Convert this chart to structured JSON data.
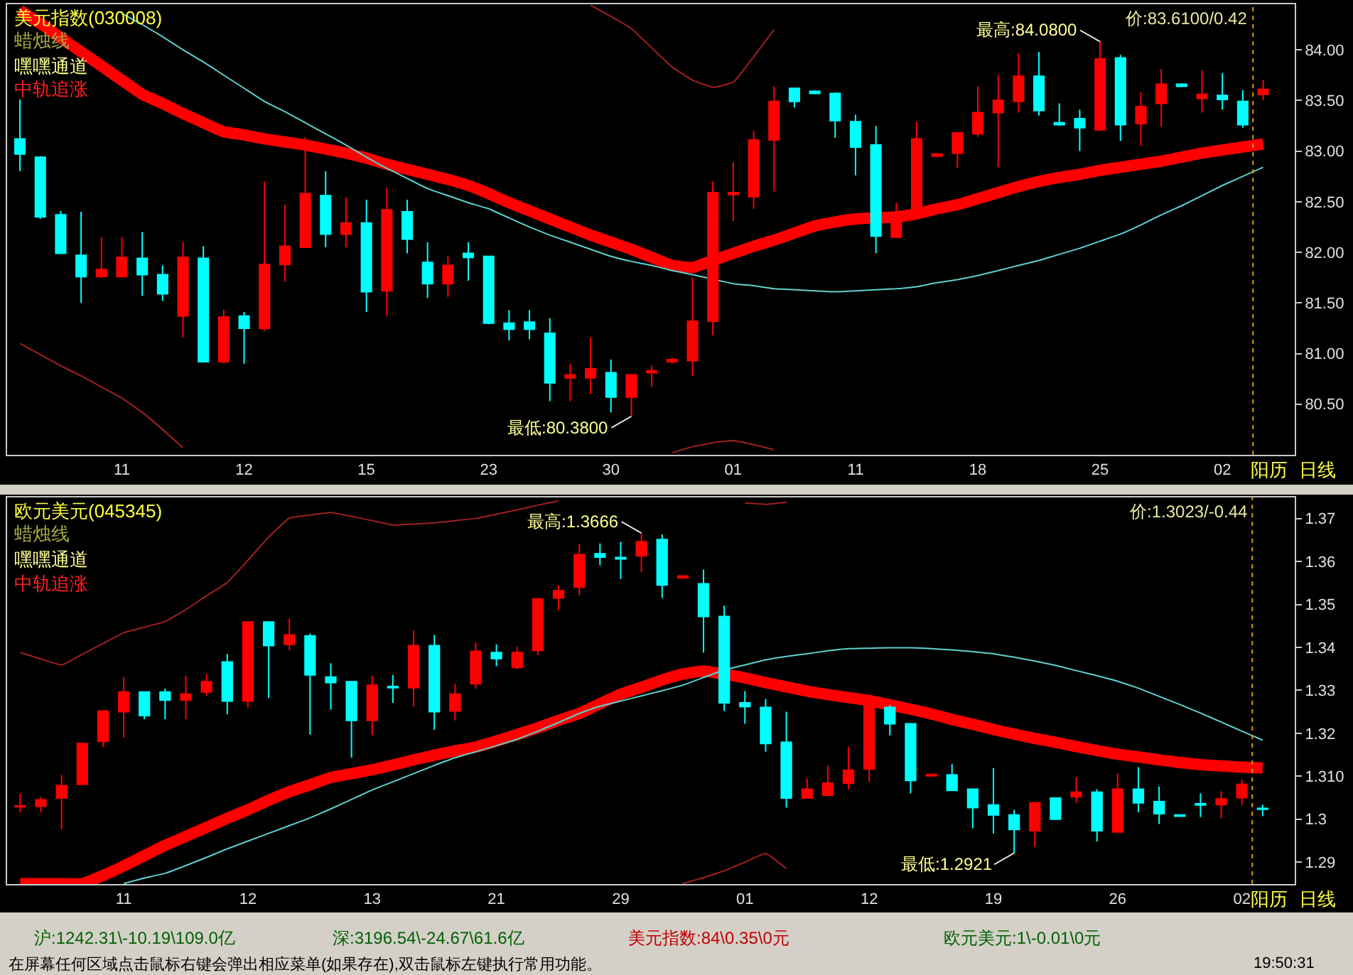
{
  "chart_data": [
    {
      "type": "candlestick",
      "title": "美元指数(030008)",
      "categories": [
        null,
        null,
        null,
        null,
        null,
        "11",
        null,
        null,
        null,
        null,
        null,
        "12",
        null,
        null,
        null,
        null,
        null,
        "15",
        null,
        null,
        null,
        null,
        null,
        "23",
        null,
        null,
        null,
        null,
        null,
        "30",
        null,
        null,
        null,
        null,
        null,
        "01",
        null,
        null,
        null,
        null,
        null,
        "11",
        null,
        null,
        null,
        null,
        null,
        "18",
        null,
        null,
        null,
        null,
        null,
        "25",
        null,
        null,
        null,
        null,
        null,
        "02",
        null,
        null
      ],
      "ohlc": [
        [
          83.12,
          83.51,
          82.8,
          82.97
        ],
        [
          82.94,
          82.95,
          82.33,
          82.35
        ],
        [
          82.37,
          82.41,
          81.99,
          81.99
        ],
        [
          81.97,
          82.4,
          81.5,
          81.76
        ],
        [
          81.76,
          82.15,
          81.75,
          81.83
        ],
        [
          81.76,
          82.15,
          81.75,
          81.95
        ],
        [
          81.94,
          82.2,
          81.57,
          81.78
        ],
        [
          81.78,
          81.87,
          81.52,
          81.59
        ],
        [
          81.37,
          82.1,
          81.16,
          81.95
        ],
        [
          81.94,
          82.06,
          80.91,
          80.92
        ],
        [
          80.92,
          81.43,
          80.9,
          81.36
        ],
        [
          81.37,
          81.41,
          80.9,
          81.25
        ],
        [
          81.25,
          82.7,
          81.22,
          81.88
        ],
        [
          81.88,
          82.47,
          81.71,
          82.06
        ],
        [
          82.05,
          83.14,
          82.05,
          82.58
        ],
        [
          82.56,
          82.8,
          82.05,
          82.18
        ],
        [
          82.18,
          82.54,
          82.05,
          82.29
        ],
        [
          82.29,
          82.52,
          81.41,
          81.61
        ],
        [
          81.62,
          82.64,
          81.37,
          82.42
        ],
        [
          82.4,
          82.52,
          81.99,
          82.13
        ],
        [
          81.9,
          82.1,
          81.55,
          81.69
        ],
        [
          81.69,
          81.96,
          81.56,
          81.87
        ],
        [
          81.99,
          82.1,
          81.72,
          81.95
        ],
        [
          81.96,
          81.96,
          81.29,
          81.3
        ],
        [
          81.3,
          81.43,
          81.13,
          81.24
        ],
        [
          81.31,
          81.43,
          81.14,
          81.24
        ],
        [
          81.2,
          81.35,
          80.53,
          80.71
        ],
        [
          80.76,
          80.9,
          80.53,
          80.79
        ],
        [
          80.76,
          81.16,
          80.6,
          80.85
        ],
        [
          80.81,
          80.94,
          80.42,
          80.57
        ],
        [
          80.57,
          80.79,
          80.38,
          80.79
        ],
        [
          80.81,
          80.88,
          80.67,
          80.83
        ],
        [
          80.92,
          80.96,
          80.9,
          80.94
        ],
        [
          80.93,
          81.75,
          80.78,
          81.32
        ],
        [
          81.32,
          82.7,
          81.18,
          82.59
        ],
        [
          82.57,
          82.89,
          82.31,
          82.59
        ],
        [
          82.55,
          83.2,
          82.43,
          83.11
        ],
        [
          83.11,
          83.64,
          82.6,
          83.49
        ],
        [
          83.62,
          83.62,
          83.43,
          83.49
        ],
        [
          83.59,
          83.6,
          83.56,
          83.57
        ],
        [
          83.57,
          83.58,
          83.13,
          83.3
        ],
        [
          83.29,
          83.36,
          82.76,
          83.04
        ],
        [
          83.06,
          83.25,
          81.99,
          82.16
        ],
        [
          82.15,
          82.49,
          82.15,
          82.33
        ],
        [
          82.38,
          83.29,
          82.38,
          83.12
        ],
        [
          82.95,
          82.98,
          82.94,
          82.97
        ],
        [
          82.98,
          83.18,
          82.83,
          83.18
        ],
        [
          83.17,
          83.64,
          83.14,
          83.38
        ],
        [
          83.38,
          83.75,
          82.84,
          83.5
        ],
        [
          83.49,
          83.97,
          83.38,
          83.74
        ],
        [
          83.74,
          83.98,
          83.35,
          83.4
        ],
        [
          83.28,
          83.47,
          83.25,
          83.26
        ],
        [
          83.32,
          83.41,
          83.0,
          83.23
        ],
        [
          83.21,
          84.08,
          83.21,
          83.91
        ],
        [
          83.92,
          83.95,
          83.1,
          83.26
        ],
        [
          83.27,
          83.58,
          83.05,
          83.44
        ],
        [
          83.47,
          83.81,
          83.24,
          83.66
        ],
        [
          83.66,
          83.67,
          83.63,
          83.64
        ],
        [
          83.52,
          83.8,
          83.38,
          83.56
        ],
        [
          83.55,
          83.77,
          83.41,
          83.51
        ],
        [
          83.49,
          83.6,
          83.23,
          83.26
        ],
        [
          83.56,
          83.7,
          83.5,
          83.61
        ]
      ],
      "colors": [
        "#00ffff",
        "#00ffff",
        "#00ffff",
        "#00ffff",
        "#ff0000",
        "#ff0000",
        "#00ffff",
        "#00ffff",
        "#ff0000",
        "#00ffff",
        "#ff0000",
        "#00ffff",
        "#ff0000",
        "#ff0000",
        "#ff0000",
        "#00ffff",
        "#ff0000",
        "#00ffff",
        "#ff0000",
        "#00ffff",
        "#00ffff",
        "#ff0000",
        "#00ffff",
        "#00ffff",
        "#00ffff",
        "#00ffff",
        "#00ffff",
        "#ff0000",
        "#ff0000",
        "#00ffff",
        "#ff0000",
        "#ff0000",
        "#ff0000",
        "#ff0000",
        "#ff0000",
        "#ff0000",
        "#ff0000",
        "#ff0000",
        "#00ffff",
        "#00ffff",
        "#00ffff",
        "#00ffff",
        "#00ffff",
        "#ff0000",
        "#ff0000",
        "#ff0000",
        "#ff0000",
        "#ff0000",
        "#ff0000",
        "#ff0000",
        "#00ffff",
        "#00ffff",
        "#00ffff",
        "#ff0000",
        "#00ffff",
        "#ff0000",
        "#ff0000",
        "#00ffff",
        "#ff0000",
        "#00ffff",
        "#00ffff",
        "#ff0000"
      ],
      "series": [
        {
          "type": "line",
          "color": "#ff0000",
          "values": [
            84.39,
            84.26,
            84.12,
            83.98,
            83.84,
            83.7,
            83.56,
            83.47,
            83.37,
            83.28,
            83.19,
            83.16,
            83.12,
            83.09,
            83.06,
            83.02,
            82.98,
            82.93,
            82.87,
            82.82,
            82.77,
            82.72,
            82.66,
            82.58,
            82.49,
            82.41,
            82.33,
            82.25,
            82.17,
            82.1,
            82.03,
            81.95,
            81.87,
            81.85,
            81.92,
            81.99,
            82.06,
            82.12,
            82.19,
            82.26,
            82.3,
            82.33,
            null,
            82.35,
            82.38,
            82.43,
            82.47,
            82.53,
            82.59,
            82.65,
            82.7,
            82.74,
            82.77,
            82.81,
            82.84,
            82.87,
            82.9,
            82.94,
            82.98,
            83.01,
            83.04,
            83.07
          ]
        },
        {
          "type": "line",
          "color": "#5fcfcf",
          "values": [
            null,
            null,
            null,
            null,
            null,
            84.36,
            84.25,
            84.13,
            84.0,
            83.88,
            83.75,
            83.62,
            83.49,
            83.39,
            83.28,
            83.17,
            83.06,
            82.94,
            82.83,
            82.73,
            82.63,
            82.56,
            82.49,
            82.43,
            82.34,
            82.25,
            82.17,
            82.1,
            82.03,
            81.96,
            81.91,
            81.87,
            81.82,
            81.78,
            null,
            81.69,
            81.67,
            81.64,
            81.63,
            81.62,
            81.61,
            81.62,
            81.63,
            81.64,
            81.66,
            81.7,
            81.73,
            81.77,
            81.82,
            81.87,
            81.92,
            81.98,
            82.04,
            82.11,
            82.18,
            82.27,
            82.37,
            82.46,
            82.56,
            82.66,
            82.75,
            82.84
          ]
        },
        {
          "type": "line",
          "color": "#a02020",
          "values": [
            null,
            null,
            null,
            null,
            null,
            null,
            null,
            null,
            null,
            null,
            null,
            null,
            null,
            null,
            null,
            null,
            null,
            null,
            null,
            null,
            null,
            null,
            null,
            null,
            null,
            null,
            null,
            null,
            84.44,
            84.33,
            84.21,
            84.02,
            83.83,
            83.7,
            83.63,
            83.68,
            83.93,
            84.2,
            null,
            null,
            null,
            null,
            null,
            null,
            null,
            null,
            null,
            null,
            null,
            null,
            null,
            null,
            null,
            null,
            null,
            null,
            null,
            null,
            null,
            null,
            null,
            null
          ]
        },
        {
          "type": "line",
          "color": "#a02020",
          "values": [
            81.1,
            80.99,
            80.88,
            80.78,
            80.67,
            80.56,
            80.42,
            80.25,
            80.07,
            null,
            null,
            null,
            null,
            null,
            null,
            null,
            null,
            null,
            null,
            null,
            null,
            null,
            null,
            null,
            null,
            null,
            null,
            null,
            null,
            null,
            null,
            null,
            80.02,
            80.08,
            80.12,
            80.14,
            80.1,
            80.05,
            null,
            null,
            null,
            null,
            null,
            null,
            null,
            null,
            null,
            null,
            null,
            null,
            null,
            null,
            null,
            null,
            null,
            null,
            null,
            null,
            null,
            null,
            null,
            null
          ]
        }
      ],
      "ylim": [
        80.0,
        84.45
      ],
      "yticks": [
        {
          "value": 80.5,
          "label": "80.50"
        },
        {
          "value": 81.0,
          "label": "81.00"
        },
        {
          "value": 81.5,
          "label": "81.50"
        },
        {
          "value": 82.0,
          "label": "82.00"
        },
        {
          "value": 82.5,
          "label": "82.50"
        },
        {
          "value": 83.0,
          "label": "83.00"
        },
        {
          "value": 83.5,
          "label": "83.50"
        },
        {
          "value": 84.0,
          "label": "84.00"
        }
      ],
      "annotations": [
        "蜡烛线",
        "嘿嘿通道",
        "中轨追涨",
        "价:83.6100/0.42",
        "阳历",
        "日线",
        "最高:84.0800",
        "最低:80.3800"
      ],
      "grid": false
    },
    {
      "type": "candlestick",
      "title": "欧元美元(045345)",
      "categories": [
        null,
        null,
        null,
        null,
        null,
        "11",
        null,
        null,
        null,
        null,
        null,
        "12",
        null,
        null,
        null,
        null,
        null,
        "13",
        null,
        null,
        null,
        null,
        null,
        "21",
        null,
        null,
        null,
        null,
        null,
        "29",
        null,
        null,
        null,
        null,
        null,
        "01",
        null,
        null,
        null,
        null,
        null,
        "12",
        null,
        null,
        null,
        null,
        null,
        "19",
        null,
        null,
        null,
        null,
        null,
        "26",
        null,
        null,
        null,
        null,
        null,
        "02",
        null
      ],
      "ohlc": [
        [
          1.3029,
          1.3059,
          1.3016,
          1.3031
        ],
        [
          1.303,
          1.3052,
          1.3016,
          1.3045
        ],
        [
          1.3049,
          1.3103,
          1.2976,
          1.3078
        ],
        [
          1.3081,
          1.3176,
          1.3081,
          1.3176
        ],
        [
          1.3181,
          1.3252,
          1.3168,
          1.3252
        ],
        [
          1.325,
          1.3331,
          1.319,
          1.3296
        ],
        [
          1.3296,
          1.3296,
          1.3233,
          1.3241
        ],
        [
          1.3296,
          1.3304,
          1.3233,
          1.3277
        ],
        [
          1.3277,
          1.3334,
          1.3233,
          1.3291
        ],
        [
          1.3296,
          1.3338,
          1.3287,
          1.332
        ],
        [
          1.3366,
          1.3385,
          1.3244,
          1.3275
        ],
        [
          1.3275,
          1.3459,
          1.326,
          1.3459
        ],
        [
          1.3459,
          1.3459,
          1.3282,
          1.3404
        ],
        [
          1.3407,
          1.3467,
          1.3393,
          1.3429
        ],
        [
          1.3427,
          1.3432,
          1.3197,
          1.3336
        ],
        [
          1.3331,
          1.3363,
          1.3255,
          1.3318
        ],
        [
          1.332,
          1.332,
          1.3143,
          1.323
        ],
        [
          1.323,
          1.3334,
          1.3195,
          1.3312
        ],
        [
          1.3309,
          1.3336,
          1.3271,
          1.3306
        ],
        [
          1.3306,
          1.3439,
          1.3263,
          1.3404
        ],
        [
          1.3404,
          1.3429,
          1.3208,
          1.325
        ],
        [
          1.3252,
          1.3315,
          1.323,
          1.3291
        ],
        [
          1.3315,
          1.3412,
          1.3304,
          1.3391
        ],
        [
          1.3388,
          1.3407,
          1.3356,
          1.3374
        ],
        [
          1.3353,
          1.3401,
          1.3349,
          1.3388
        ],
        [
          1.3393,
          1.3513,
          1.3382,
          1.3513
        ],
        [
          1.3515,
          1.3545,
          1.3486,
          1.3532
        ],
        [
          1.354,
          1.364,
          1.3521,
          1.3616
        ],
        [
          1.3618,
          1.3642,
          1.3591,
          1.361
        ],
        [
          1.3609,
          1.3646,
          1.3559,
          1.3606
        ],
        [
          1.3613,
          1.3666,
          1.3575,
          1.3646
        ],
        [
          1.3651,
          1.3663,
          1.3515,
          1.3545
        ],
        [
          1.3562,
          1.3568,
          1.356,
          1.3566
        ],
        [
          1.3548,
          1.3581,
          1.3388,
          1.3472
        ],
        [
          1.3472,
          1.3497,
          1.3252,
          1.3271
        ],
        [
          1.3271,
          1.3298,
          1.3222,
          1.3262
        ],
        [
          1.326,
          1.328,
          1.3157,
          1.3176
        ],
        [
          1.3179,
          1.325,
          1.3027,
          1.3049
        ],
        [
          1.3049,
          1.3095,
          1.3049,
          1.307
        ],
        [
          1.3056,
          1.3125,
          1.3056,
          1.3084
        ],
        [
          1.3084,
          1.3168,
          1.307,
          1.3114
        ],
        [
          1.3117,
          1.3288,
          1.3087,
          1.328
        ],
        [
          1.326,
          1.3266,
          1.3195,
          1.3222
        ],
        [
          1.3222,
          1.3222,
          1.306,
          1.309
        ],
        [
          1.3101,
          1.3105,
          1.31,
          1.3104
        ],
        [
          1.3103,
          1.3128,
          1.3067,
          1.3067
        ],
        [
          1.307,
          1.307,
          1.2979,
          1.3027
        ],
        [
          1.3033,
          1.3119,
          1.2967,
          1.301
        ],
        [
          1.301,
          1.3022,
          1.2921,
          1.2976
        ],
        [
          1.2973,
          1.3038,
          1.2935,
          1.3038
        ],
        [
          1.3049,
          1.3049,
          1.3,
          1.3
        ],
        [
          1.3052,
          1.3098,
          1.3038,
          1.3063
        ],
        [
          1.3063,
          1.307,
          1.2948,
          1.2973
        ],
        [
          1.297,
          1.3106,
          1.297,
          1.307
        ],
        [
          1.307,
          1.3121,
          1.3016,
          1.3038
        ],
        [
          1.3041,
          1.3076,
          1.2989,
          1.3013
        ],
        [
          1.301,
          1.3011,
          1.3006,
          1.3007
        ],
        [
          1.3036,
          1.306,
          1.3005,
          1.3033
        ],
        [
          1.3034,
          1.3065,
          1.3002,
          1.3047
        ],
        [
          1.305,
          1.3092,
          1.3033,
          1.3081
        ],
        [
          1.3025,
          1.3034,
          1.3007,
          1.3023
        ]
      ],
      "colors": [
        "#ff0000",
        "#ff0000",
        "#ff0000",
        "#ff0000",
        "#ff0000",
        "#ff0000",
        "#00ffff",
        "#00ffff",
        "#ff0000",
        "#ff0000",
        "#00ffff",
        "#ff0000",
        "#00ffff",
        "#ff0000",
        "#00ffff",
        "#00ffff",
        "#00ffff",
        "#ff0000",
        "#00ffff",
        "#ff0000",
        "#00ffff",
        "#ff0000",
        "#ff0000",
        "#00ffff",
        "#ff0000",
        "#ff0000",
        "#ff0000",
        "#ff0000",
        "#00ffff",
        "#00ffff",
        "#ff0000",
        "#00ffff",
        "#ff0000",
        "#00ffff",
        "#00ffff",
        "#00ffff",
        "#00ffff",
        "#00ffff",
        "#ff0000",
        "#ff0000",
        "#ff0000",
        "#ff0000",
        "#00ffff",
        "#00ffff",
        "#ff0000",
        "#00ffff",
        "#00ffff",
        "#00ffff",
        "#00ffff",
        "#ff0000",
        "#00ffff",
        "#ff0000",
        "#00ffff",
        "#ff0000",
        "#00ffff",
        "#00ffff",
        "#00ffff",
        "#00ffff",
        "#ff0000",
        "#ff0000",
        "#00ffff"
      ],
      "series": [
        {
          "type": "line",
          "color": "#ff0000",
          "values": [
            1.285,
            1.285,
            1.285,
            1.285,
            1.2869,
            1.2891,
            1.2915,
            1.2939,
            1.296,
            1.2981,
            1.3002,
            1.3022,
            1.3044,
            1.3064,
            1.308,
            1.3097,
            1.3106,
            1.3115,
            1.3126,
            1.3138,
            1.3149,
            1.3159,
            1.3168,
            1.3182,
            1.3197,
            1.3213,
            1.323,
            1.3246,
            1.3269,
            1.3291,
            1.3307,
            1.3324,
            1.3338,
            1.3345,
            null,
            1.3329,
            1.3318,
            1.3308,
            1.3298,
            1.329,
            1.3283,
            1.3276,
            1.3266,
            1.3256,
            1.3245,
            1.3232,
            1.3221,
            1.3209,
            1.3198,
            1.3188,
            1.3179,
            1.3169,
            1.316,
            1.3151,
            1.3145,
            1.3138,
            1.3132,
            1.3127,
            1.3124,
            1.3121,
            1.3119
          ]
        },
        {
          "type": "line",
          "color": "#5fcfcf",
          "values": [
            null,
            null,
            null,
            null,
            null,
            1.285,
            1.2863,
            1.2874,
            1.2892,
            1.2911,
            1.2931,
            1.2949,
            1.2967,
            1.2985,
            1.3003,
            1.3024,
            1.3046,
            1.3068,
            1.3087,
            1.3106,
            1.3125,
            1.3143,
            1.3157,
            1.3171,
            1.3186,
            1.3205,
            1.3225,
            1.3246,
            1.3263,
            1.3275,
            1.3287,
            1.3299,
            1.3312,
            1.333,
            1.3347,
            1.3359,
            1.3371,
            1.3379,
            1.3385,
            1.3392,
            1.3397,
            1.3398,
            1.3399,
            1.3399,
            1.3397,
            1.3394,
            1.339,
            1.3385,
            1.3377,
            1.3368,
            1.3358,
            1.3346,
            1.3334,
            1.3321,
            1.3305,
            1.3286,
            1.3267,
            1.3247,
            1.3226,
            1.3205,
            1.3184
          ]
        },
        {
          "type": "line",
          "color": "#a02020",
          "values": [
            1.3388,
            1.3373,
            1.3359,
            1.3384,
            1.3409,
            1.3434,
            1.3447,
            1.346,
            1.3488,
            1.352,
            1.3551,
            1.3603,
            1.3657,
            1.3701,
            1.3708,
            1.3714,
            1.3705,
            1.3695,
            1.3685,
            1.3687,
            1.369,
            1.3695,
            1.37,
            1.371,
            1.372,
            1.3731,
            1.3741,
            null,
            null,
            null,
            null,
            null,
            null,
            null,
            null,
            1.3736,
            1.3733,
            1.3738,
            null,
            null,
            null,
            null,
            null,
            null,
            null,
            null,
            null,
            null,
            null,
            null,
            null,
            null,
            null,
            null,
            null,
            null,
            null,
            null,
            null,
            null,
            null
          ]
        },
        {
          "type": "line",
          "color": "#a02020",
          "values": [
            null,
            null,
            null,
            null,
            null,
            null,
            null,
            null,
            null,
            null,
            null,
            null,
            null,
            null,
            null,
            null,
            null,
            null,
            null,
            null,
            null,
            null,
            null,
            null,
            null,
            null,
            null,
            null,
            null,
            null,
            null,
            null,
            1.285,
            1.2864,
            1.288,
            1.29,
            1.292,
            1.2885,
            null,
            null,
            null,
            null,
            null,
            null,
            null,
            null,
            null,
            null,
            null,
            null,
            null,
            null,
            null,
            null,
            null,
            null,
            null,
            null,
            null,
            null,
            null
          ]
        }
      ],
      "ylim": [
        1.2849,
        1.3749
      ],
      "yticks": [
        1.29,
        1.3,
        {
          "value": 1.31,
          "label": "1.310"
        },
        1.32,
        1.33,
        1.34,
        1.35,
        1.36,
        1.37
      ],
      "annotations": [
        "蜡烛线",
        "嘿嘿通道",
        "中轨追涨",
        "价:1.3023/-0.44",
        "阳历",
        "日线",
        "最高:1.3666",
        "最低:1.2921",
        "沪:1242.31\\-10.19\\109.0亿",
        "深:3196.54\\-24.67\\61.6亿",
        "美元指数:84\\0.35\\0元",
        "欧元美元:1\\-0.01\\0元",
        "在屏幕任何区域点击鼠标右键会弹出相应菜单(如果存在),双击鼠标左键执行常用功能。",
        "19:50:31"
      ],
      "grid": false
    }
  ]
}
